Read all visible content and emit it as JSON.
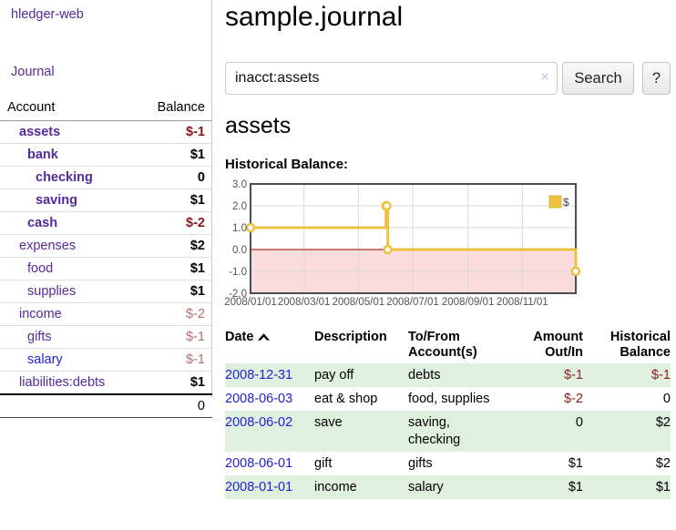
{
  "sidebar": {
    "app_title": "hledger-web",
    "journal_link": "Journal",
    "accounts": {
      "header_account": "Account",
      "header_balance": "Balance",
      "rows": [
        {
          "name": "assets",
          "balance": "$-1"
        },
        {
          "name": "bank",
          "balance": "$1"
        },
        {
          "name": "checking",
          "balance": "0"
        },
        {
          "name": "saving",
          "balance": "$1"
        },
        {
          "name": "cash",
          "balance": "$-2"
        },
        {
          "name": "expenses",
          "balance": "$2"
        },
        {
          "name": "food",
          "balance": "$1"
        },
        {
          "name": "supplies",
          "balance": "$1"
        },
        {
          "name": "income",
          "balance": "$-2"
        },
        {
          "name": "gifts",
          "balance": "$-1"
        },
        {
          "name": "salary",
          "balance": "$-1"
        },
        {
          "name": "liabilities:debts",
          "balance": "$1"
        }
      ],
      "total": "0"
    }
  },
  "main": {
    "title": "sample.journal",
    "account_title": "assets",
    "chart_heading": "Historical Balance:"
  },
  "search": {
    "query": "inacct:assets",
    "clear_icon": "×",
    "search_label": "Search",
    "help_label": "?"
  },
  "chart_data": {
    "type": "line",
    "step": true,
    "title": "Historical Balance:",
    "x_start": "2008-01-01",
    "x_end": "2008-12-31",
    "series": [
      {
        "name": "$",
        "color": "#edc240",
        "x": [
          "2008-01-01",
          "2008-06-01",
          "2008-06-02",
          "2008-06-03",
          "2008-12-31"
        ],
        "values": [
          1,
          2,
          2,
          0,
          -1
        ]
      }
    ],
    "ylim": [
      -2,
      3
    ],
    "yticks": [
      3.0,
      2.0,
      1.0,
      0.0,
      -1.0,
      -2.0
    ],
    "xtick_labels": [
      "2008/01/01",
      "2008/03/01",
      "2008/05/01",
      "2008/07/01",
      "2008/09/01",
      "2008/11/01"
    ],
    "legend_position": "top-right",
    "grid": true,
    "negative_region_color": "#fbdcdc",
    "zero_line_color": "#8b0000"
  },
  "register": {
    "columns": {
      "date": "Date",
      "description": "Description",
      "tofrom_line1": "To/From",
      "tofrom_line2": "Account(s)",
      "amount_line1": "Amount",
      "amount_line2": "Out/In",
      "balance_line1": "Historical",
      "balance_line2": "Balance"
    },
    "rows": [
      {
        "date": "2008-12-31",
        "description": "pay off",
        "accounts": "debts",
        "amount": "$-1",
        "balance": "$-1"
      },
      {
        "date": "2008-06-03",
        "description": "eat & shop",
        "accounts": "food, supplies",
        "amount": "$-2",
        "balance": "0"
      },
      {
        "date": "2008-06-02",
        "description": "save",
        "accounts": "saving, checking",
        "amount": "0",
        "balance": "$2"
      },
      {
        "date": "2008-06-01",
        "description": "gift",
        "accounts": "gifts",
        "amount": "$1",
        "balance": "$2"
      },
      {
        "date": "2008-01-01",
        "description": "income",
        "accounts": "salary",
        "amount": "$1",
        "balance": "$1"
      }
    ]
  }
}
